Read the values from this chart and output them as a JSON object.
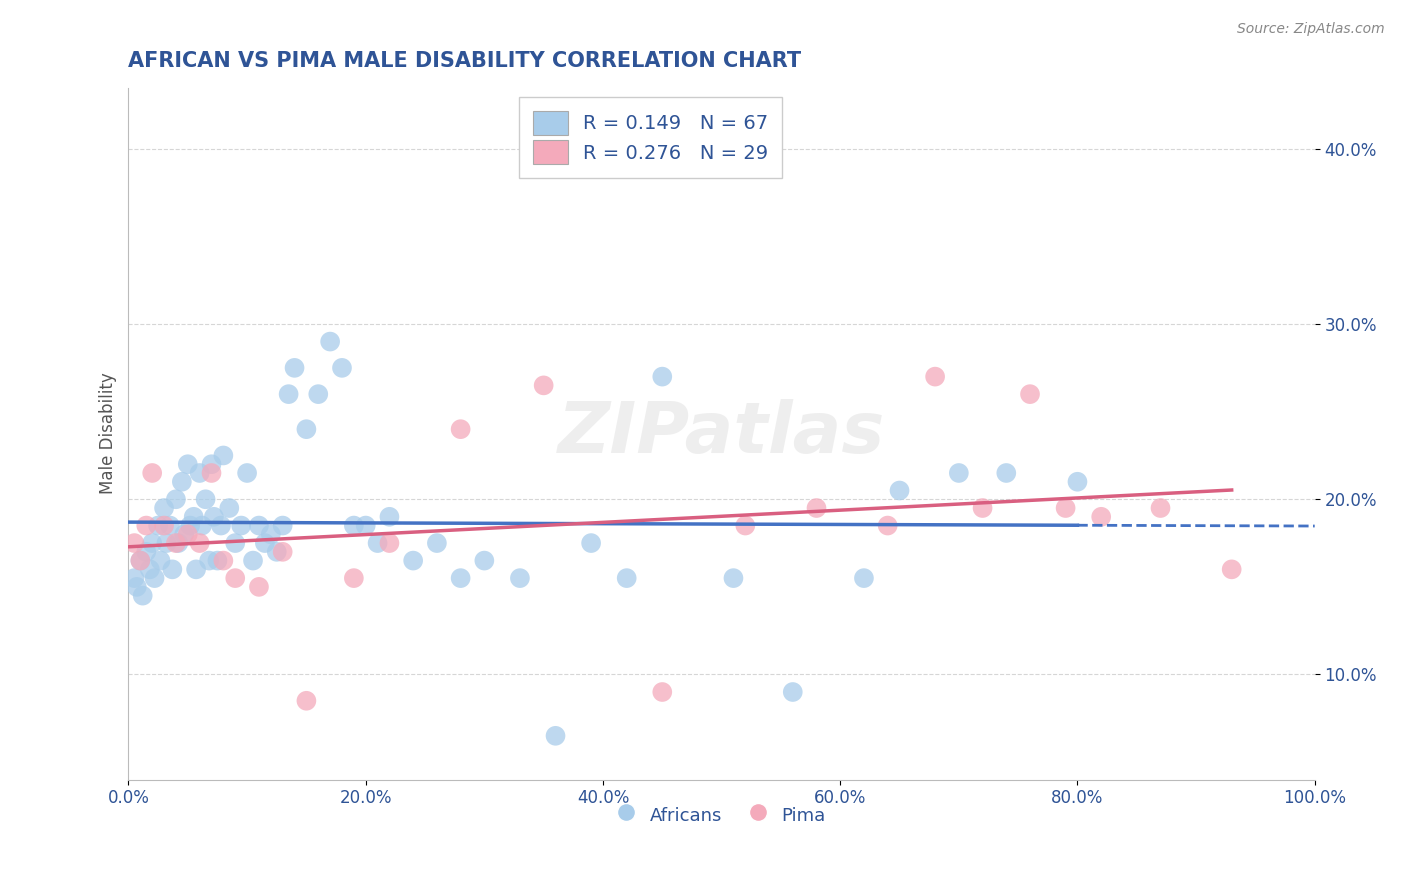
{
  "title": "AFRICAN VS PIMA MALE DISABILITY CORRELATION CHART",
  "source": "Source: ZipAtlas.com",
  "ylabel": "Male Disability",
  "xlabel": "",
  "xlim": [
    0.0,
    1.0
  ],
  "ylim": [
    0.04,
    0.435
  ],
  "yticks": [
    0.1,
    0.2,
    0.3,
    0.4
  ],
  "ytick_labels": [
    "10.0%",
    "20.0%",
    "30.0%",
    "40.0%"
  ],
  "xticks": [
    0.0,
    0.2,
    0.4,
    0.6,
    0.8,
    1.0
  ],
  "xtick_labels": [
    "0.0%",
    "20.0%",
    "40.0%",
    "60.0%",
    "80.0%",
    "100.0%"
  ],
  "african_R": 0.149,
  "african_N": 67,
  "pima_R": 0.276,
  "pima_N": 29,
  "african_color": "#A8CCEA",
  "pima_color": "#F4AABB",
  "trend_african_color": "#4472C4",
  "trend_pima_color": "#D95F80",
  "background_color": "#FFFFFF",
  "grid_color": "#CCCCCC",
  "title_color": "#2F5496",
  "axis_color": "#2F5496",
  "legend_text_color": "#2F5496",
  "africans_x": [
    0.005,
    0.007,
    0.01,
    0.012,
    0.015,
    0.018,
    0.02,
    0.022,
    0.025,
    0.027,
    0.03,
    0.032,
    0.035,
    0.037,
    0.04,
    0.042,
    0.045,
    0.047,
    0.05,
    0.052,
    0.055,
    0.057,
    0.06,
    0.062,
    0.065,
    0.068,
    0.07,
    0.072,
    0.075,
    0.078,
    0.08,
    0.085,
    0.09,
    0.095,
    0.1,
    0.105,
    0.11,
    0.115,
    0.12,
    0.125,
    0.13,
    0.135,
    0.14,
    0.15,
    0.16,
    0.17,
    0.18,
    0.19,
    0.2,
    0.21,
    0.22,
    0.24,
    0.26,
    0.28,
    0.3,
    0.33,
    0.36,
    0.39,
    0.42,
    0.45,
    0.51,
    0.56,
    0.62,
    0.65,
    0.7,
    0.74,
    0.8
  ],
  "africans_y": [
    0.155,
    0.15,
    0.165,
    0.145,
    0.17,
    0.16,
    0.175,
    0.155,
    0.185,
    0.165,
    0.195,
    0.175,
    0.185,
    0.16,
    0.2,
    0.175,
    0.21,
    0.18,
    0.22,
    0.185,
    0.19,
    0.16,
    0.215,
    0.185,
    0.2,
    0.165,
    0.22,
    0.19,
    0.165,
    0.185,
    0.225,
    0.195,
    0.175,
    0.185,
    0.215,
    0.165,
    0.185,
    0.175,
    0.18,
    0.17,
    0.185,
    0.26,
    0.275,
    0.24,
    0.26,
    0.29,
    0.275,
    0.185,
    0.185,
    0.175,
    0.19,
    0.165,
    0.175,
    0.155,
    0.165,
    0.155,
    0.065,
    0.175,
    0.155,
    0.27,
    0.155,
    0.09,
    0.155,
    0.205,
    0.215,
    0.215,
    0.21
  ],
  "pima_x": [
    0.005,
    0.01,
    0.015,
    0.02,
    0.03,
    0.04,
    0.05,
    0.06,
    0.07,
    0.08,
    0.09,
    0.11,
    0.13,
    0.15,
    0.19,
    0.22,
    0.28,
    0.35,
    0.45,
    0.52,
    0.58,
    0.64,
    0.68,
    0.72,
    0.76,
    0.79,
    0.82,
    0.87,
    0.93
  ],
  "pima_y": [
    0.175,
    0.165,
    0.185,
    0.215,
    0.185,
    0.175,
    0.18,
    0.175,
    0.215,
    0.165,
    0.155,
    0.15,
    0.17,
    0.085,
    0.155,
    0.175,
    0.24,
    0.265,
    0.09,
    0.185,
    0.195,
    0.185,
    0.27,
    0.195,
    0.26,
    0.195,
    0.19,
    0.195,
    0.16
  ]
}
